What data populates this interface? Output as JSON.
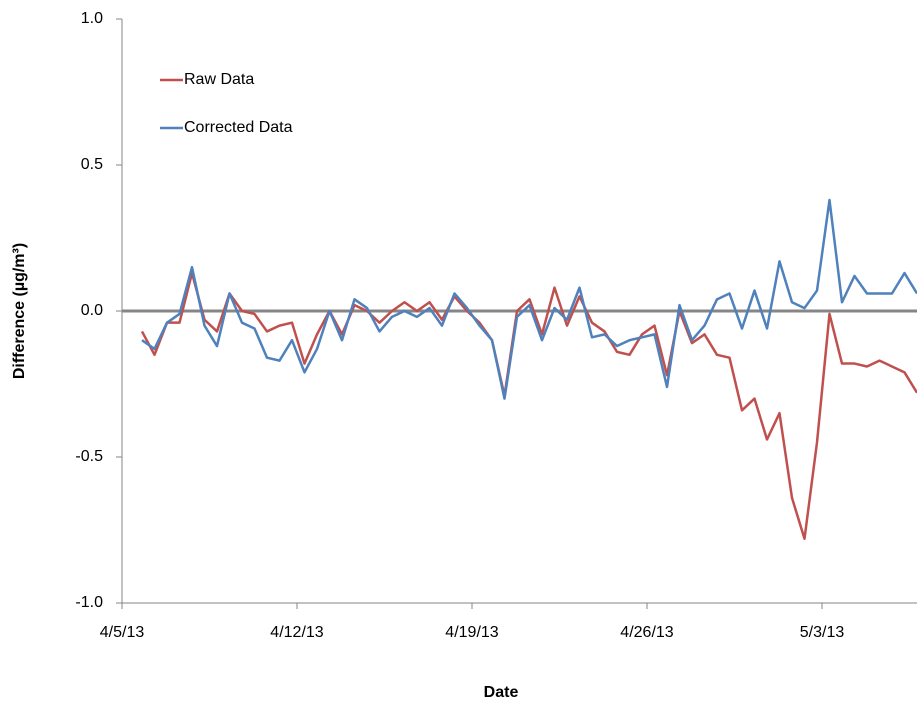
{
  "chart_data": {
    "type": "line",
    "xlabel": "Date",
    "ylabel": "Difference (µg/m³)",
    "xlim": [
      0,
      31.8
    ],
    "xticks": [
      {
        "value": 0,
        "label": "4/5/13"
      },
      {
        "value": 7,
        "label": "4/12/13"
      },
      {
        "value": 14,
        "label": "4/19/13"
      },
      {
        "value": 21,
        "label": "4/26/13"
      },
      {
        "value": 28,
        "label": "5/3/13"
      }
    ],
    "ylim": [
      -1.0,
      1.0
    ],
    "yticks": [
      {
        "value": -1.0,
        "label": "-1.0"
      },
      {
        "value": -0.5,
        "label": "-0.5"
      },
      {
        "value": 0,
        "label": "0.0"
      },
      {
        "value": 0.5,
        "label": "0.5"
      },
      {
        "value": 1.0,
        "label": "1.0"
      }
    ],
    "grid": false,
    "legend": "upper left",
    "x": [
      0.8,
      1.3,
      1.8,
      2.3,
      2.8,
      3.3,
      3.8,
      4.3,
      4.8,
      5.3,
      5.8,
      6.3,
      6.8,
      7.3,
      7.8,
      8.3,
      8.8,
      9.3,
      9.8,
      10.3,
      10.8,
      11.3,
      11.8,
      12.3,
      12.8,
      13.3,
      13.8,
      14.3,
      14.8,
      15.3,
      15.8,
      16.3,
      16.8,
      17.3,
      17.8,
      18.3,
      18.8,
      19.3,
      19.8,
      20.3,
      20.8,
      21.3,
      21.8,
      22.3,
      22.8,
      23.3,
      23.8,
      24.3,
      24.8,
      25.3,
      25.8,
      26.3,
      26.8,
      27.3,
      27.8,
      28.3,
      28.8,
      29.3,
      29.8,
      30.3,
      30.8,
      31.3,
      31.8
    ],
    "series": [
      {
        "name": "Raw Data",
        "color": "#c0504d",
        "values": [
          -0.07,
          -0.15,
          -0.04,
          -0.04,
          0.13,
          -0.03,
          -0.07,
          0.06,
          0.0,
          -0.01,
          -0.07,
          -0.05,
          -0.04,
          -0.18,
          -0.08,
          0.0,
          -0.08,
          0.02,
          0.0,
          -0.04,
          0.0,
          0.03,
          0.0,
          0.03,
          -0.03,
          0.05,
          0.0,
          -0.04,
          -0.1,
          -0.29,
          0.0,
          0.04,
          -0.08,
          0.08,
          -0.05,
          0.05,
          -0.04,
          -0.07,
          -0.14,
          -0.15,
          -0.08,
          -0.05,
          -0.22,
          0.0,
          -0.11,
          -0.08,
          -0.15,
          -0.16,
          -0.34,
          -0.3,
          -0.44,
          -0.35,
          -0.64,
          -0.78,
          -0.45,
          -0.01,
          -0.18,
          -0.18,
          -0.19,
          -0.17,
          -0.19,
          -0.21,
          -0.28
        ]
      },
      {
        "name": "Corrected Data",
        "color": "#4f81bd",
        "values": [
          -0.1,
          -0.13,
          -0.04,
          -0.01,
          0.15,
          -0.05,
          -0.12,
          0.06,
          -0.04,
          -0.06,
          -0.16,
          -0.17,
          -0.1,
          -0.21,
          -0.13,
          0.0,
          -0.1,
          0.04,
          0.01,
          -0.07,
          -0.02,
          0.0,
          -0.02,
          0.01,
          -0.05,
          0.06,
          0.01,
          -0.05,
          -0.1,
          -0.3,
          -0.02,
          0.02,
          -0.1,
          0.01,
          -0.03,
          0.08,
          -0.09,
          -0.08,
          -0.12,
          -0.1,
          -0.09,
          -0.08,
          -0.26,
          0.02,
          -0.1,
          -0.05,
          0.04,
          0.06,
          -0.06,
          0.07,
          -0.06,
          0.17,
          0.03,
          0.01,
          0.07,
          0.38,
          0.03,
          0.12,
          0.06,
          0.06,
          0.06,
          0.13,
          0.06
        ]
      }
    ]
  }
}
